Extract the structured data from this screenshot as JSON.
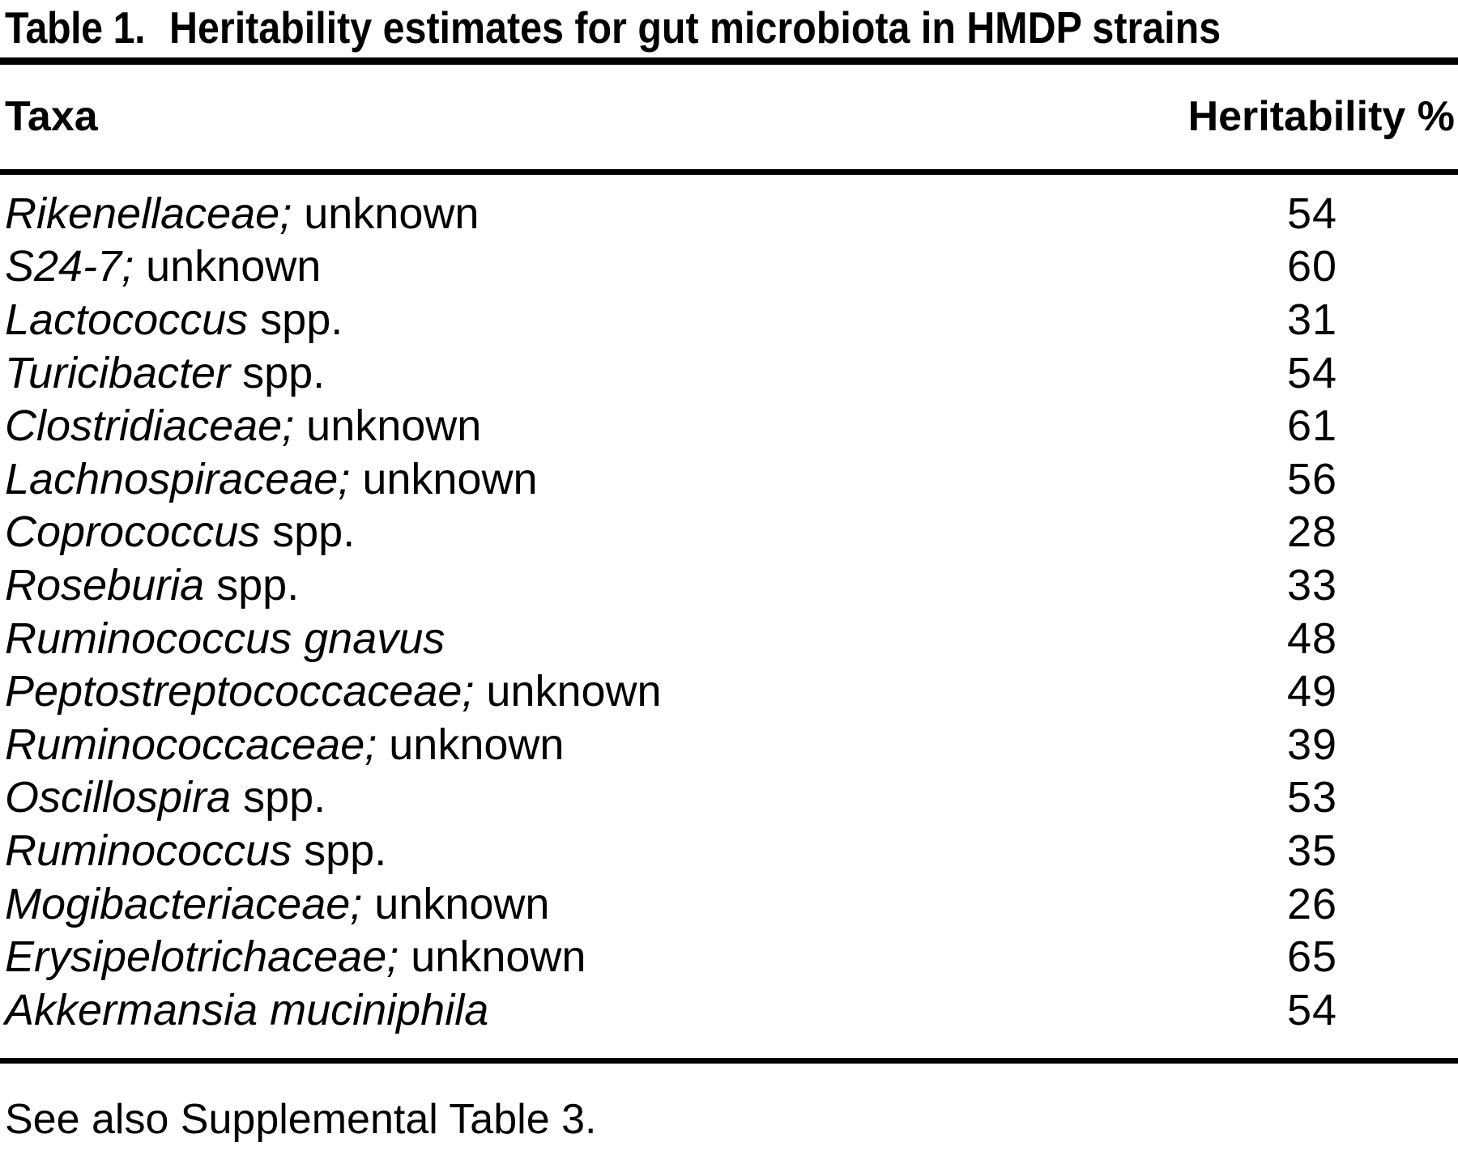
{
  "title": {
    "label": "Table 1.",
    "text": "Heritability estimates for gut microbiota in HMDP strains"
  },
  "columns": {
    "taxa": "Taxa",
    "heritability": "Heritability %"
  },
  "rows": [
    {
      "italic": "Rikenellaceae;",
      "roman": "unknown",
      "value": "54"
    },
    {
      "italic": "S24-7;",
      "roman": "unknown",
      "value": "60"
    },
    {
      "italic": "Lactococcus",
      "roman": "spp.",
      "value": "31"
    },
    {
      "italic": "Turicibacter",
      "roman": "spp.",
      "value": "54"
    },
    {
      "italic": "Clostridiaceae;",
      "roman": "unknown",
      "value": "61"
    },
    {
      "italic": "Lachnospiraceae;",
      "roman": "unknown",
      "value": "56"
    },
    {
      "italic": "Coprococcus",
      "roman": "spp.",
      "value": "28"
    },
    {
      "italic": "Roseburia",
      "roman": "spp.",
      "value": "33"
    },
    {
      "italic": "Ruminococcus gnavus",
      "roman": "",
      "value": "48"
    },
    {
      "italic": "Peptostreptococcaceae;",
      "roman": "unknown",
      "value": "49"
    },
    {
      "italic": "Ruminococcaceae;",
      "roman": "unknown",
      "value": "39"
    },
    {
      "italic": "Oscillospira",
      "roman": "spp.",
      "value": "53"
    },
    {
      "italic": "Ruminococcus",
      "roman": "spp.",
      "value": "35"
    },
    {
      "italic": "Mogibacteriaceae;",
      "roman": "unknown",
      "value": "26"
    },
    {
      "italic": "Erysipelotrichaceae;",
      "roman": "unknown",
      "value": "65"
    },
    {
      "italic": "Akkermansia muciniphila",
      "roman": "",
      "value": "54"
    }
  ],
  "footer": "See also Supplemental Table 3.",
  "colors": {
    "text": "#000000",
    "background": "#ffffff",
    "rule": "#000000"
  },
  "chart_data": {
    "type": "table",
    "title": "Table 1. Heritability estimates for gut microbiota in HMDP strains",
    "columns": [
      "Taxa",
      "Heritability %"
    ],
    "categories": [
      "Rikenellaceae; unknown",
      "S24-7; unknown",
      "Lactococcus spp.",
      "Turicibacter spp.",
      "Clostridiaceae; unknown",
      "Lachnospiraceae; unknown",
      "Coprococcus spp.",
      "Roseburia spp.",
      "Ruminococcus gnavus",
      "Peptostreptococcaceae; unknown",
      "Ruminococcaceae; unknown",
      "Oscillospira spp.",
      "Ruminococcus spp.",
      "Mogibacteriaceae; unknown",
      "Erysipelotrichaceae; unknown",
      "Akkermansia muciniphila"
    ],
    "values": [
      54,
      60,
      31,
      54,
      61,
      56,
      28,
      33,
      48,
      49,
      39,
      53,
      35,
      26,
      65,
      54
    ],
    "footnote": "See also Supplemental Table 3."
  }
}
